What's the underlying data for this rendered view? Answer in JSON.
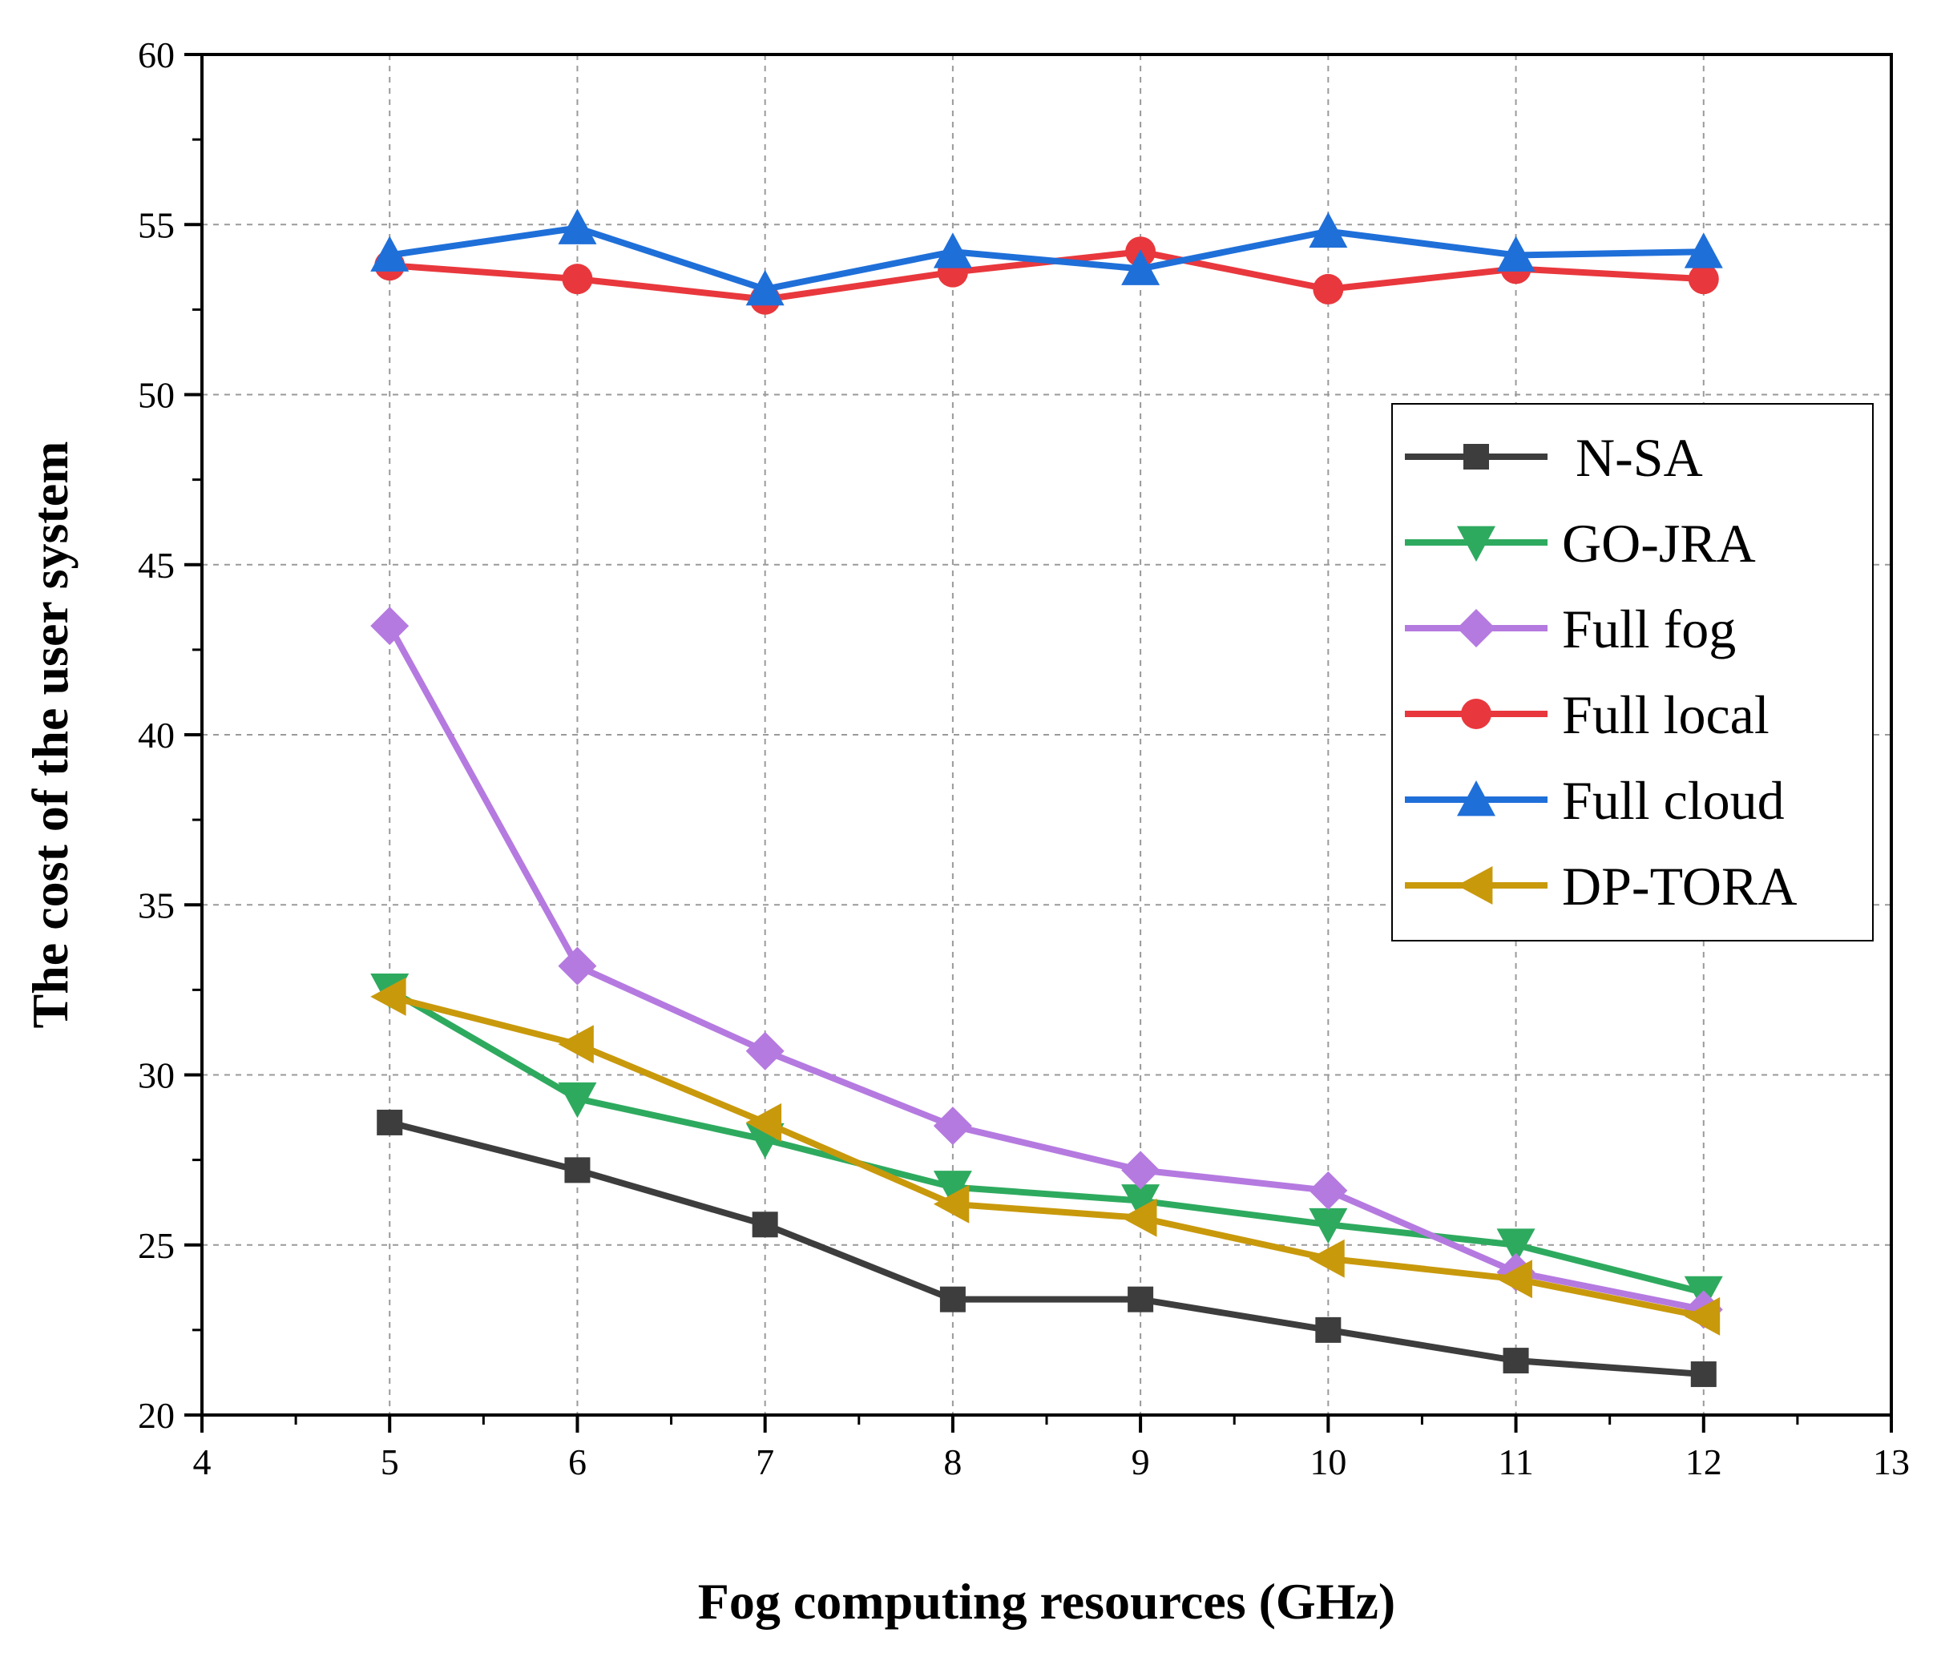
{
  "chart_data": {
    "type": "line",
    "title": "",
    "xlabel": "Fog computing resources (GHz)",
    "ylabel": "The cost of the user system",
    "xlim": [
      4,
      13
    ],
    "ylim": [
      20,
      60
    ],
    "xticks": [
      "4",
      "5",
      "6",
      "7",
      "8",
      "9",
      "10",
      "11",
      "12",
      "13"
    ],
    "yticks": [
      "20",
      "25",
      "30",
      "35",
      "40",
      "45",
      "50",
      "55",
      "60"
    ],
    "grid": true,
    "legend_position": "right",
    "x": [
      5,
      6,
      7,
      8,
      9,
      10,
      11,
      12
    ],
    "series": [
      {
        "name": "N-SA",
        "marker": "square",
        "color": "#3d3d3d",
        "values": [
          28.6,
          27.2,
          25.6,
          23.4,
          23.4,
          22.5,
          21.6,
          21.2
        ]
      },
      {
        "name": "GO-JRA",
        "marker": "triangle-down",
        "color": "#2eaa5f",
        "values": [
          32.5,
          29.3,
          28.1,
          26.7,
          26.3,
          25.6,
          25.0,
          23.6
        ]
      },
      {
        "name": "Full fog",
        "marker": "diamond",
        "color": "#b57ae0",
        "values": [
          43.2,
          33.2,
          30.7,
          28.5,
          27.2,
          26.6,
          24.2,
          23.1
        ]
      },
      {
        "name": "Full local",
        "marker": "circle",
        "color": "#e8383d",
        "values": [
          53.8,
          53.4,
          52.8,
          53.6,
          54.2,
          53.1,
          53.7,
          53.4
        ]
      },
      {
        "name": "Full cloud",
        "marker": "triangle-up",
        "color": "#1f6fd9",
        "values": [
          54.1,
          54.9,
          53.1,
          54.2,
          53.7,
          54.8,
          54.1,
          54.2
        ]
      },
      {
        "name": "DP-TORA",
        "marker": "triangle-left",
        "color": "#c9990c",
        "values": [
          32.3,
          30.9,
          28.6,
          26.2,
          25.8,
          24.6,
          24.0,
          22.9
        ]
      }
    ]
  }
}
